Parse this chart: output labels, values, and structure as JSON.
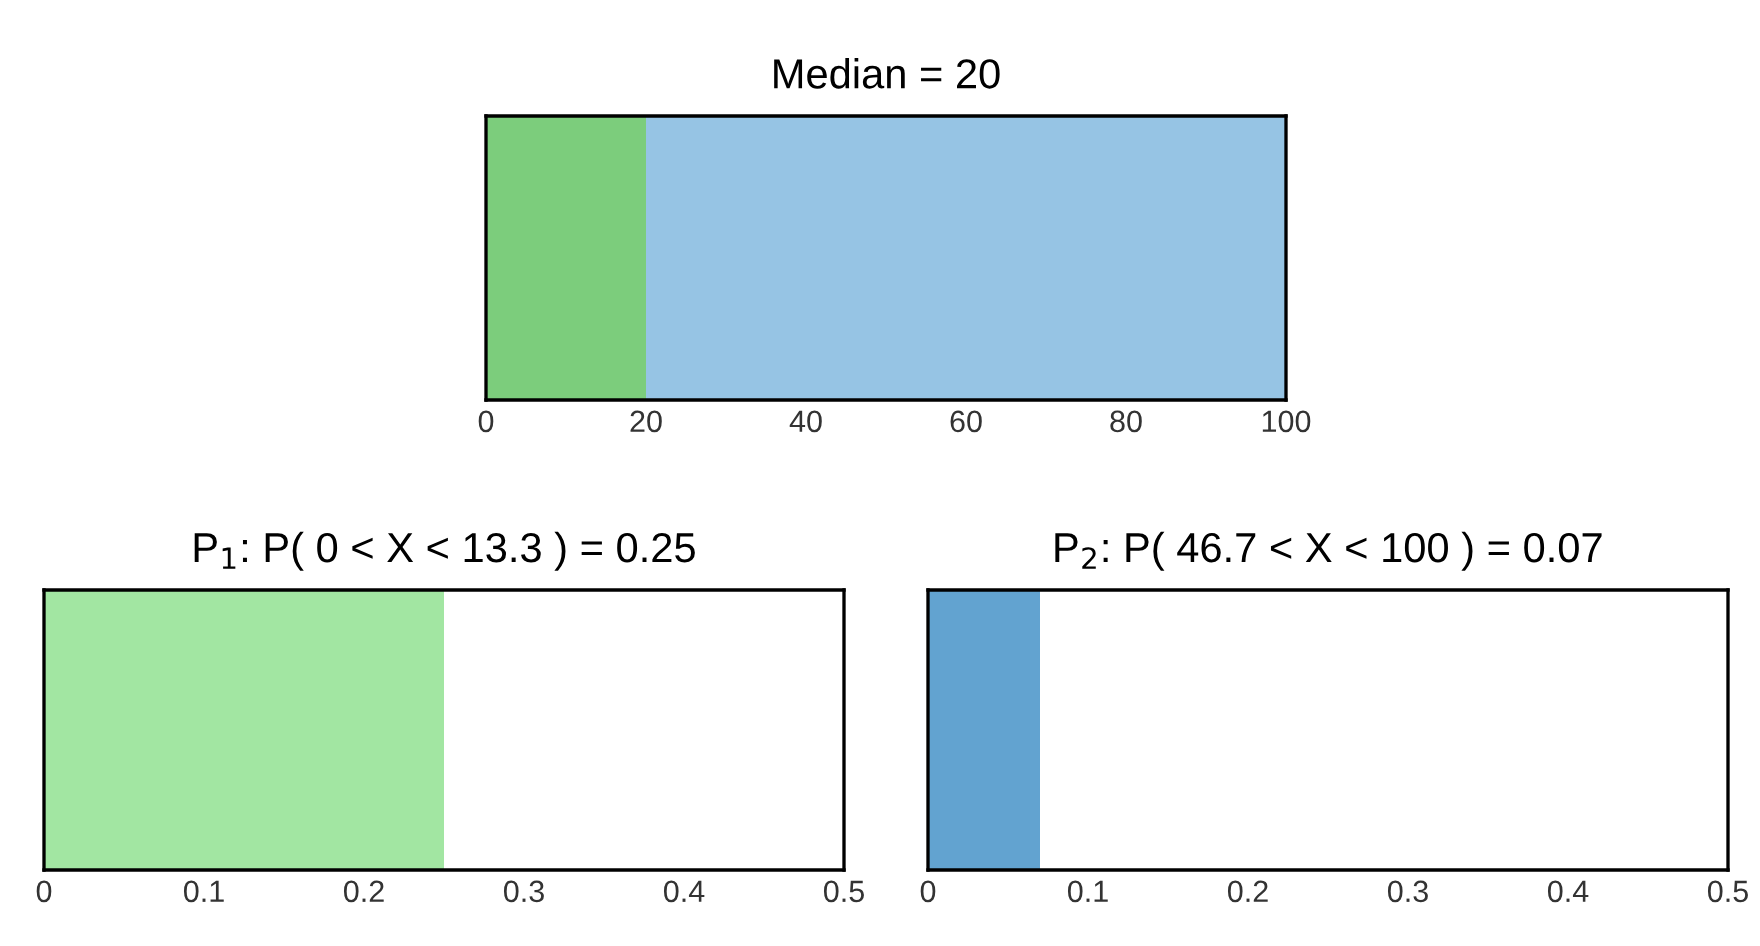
{
  "chart_data": [
    {
      "type": "bar",
      "orientation": "horizontal",
      "stacked": true,
      "title": "Median = 20",
      "categories": [
        null
      ],
      "tick_labels": "x",
      "xlim": [
        0,
        100
      ],
      "xticks": [
        0,
        20,
        40,
        60,
        80,
        100
      ],
      "grid": false,
      "legend": false,
      "series": [
        {
          "color": "#7ccd7c",
          "values": [
            20
          ]
        },
        {
          "color": "#96c4e4",
          "values": [
            80
          ]
        }
      ]
    },
    {
      "type": "bar",
      "orientation": "horizontal",
      "title": "P$_{1}$: P( 0 < X < 13.3 ) = 0.25",
      "categories": [
        null
      ],
      "tick_labels": "x",
      "xlim": [
        0,
        0.5
      ],
      "xticks": [
        0,
        0.1,
        0.2,
        0.3,
        0.4,
        0.5
      ],
      "grid": false,
      "legend": false,
      "series": [
        {
          "color": "#a2e6a2",
          "values": [
            0.25
          ]
        }
      ]
    },
    {
      "type": "bar",
      "orientation": "horizontal",
      "title": "P$_{2}$: P( 46.7 < X < 100 ) = 0.07",
      "categories": [
        null
      ],
      "tick_labels": "x",
      "xlim": [
        0,
        0.5
      ],
      "xticks": [
        0,
        0.1,
        0.2,
        0.3,
        0.4,
        0.5
      ],
      "grid": false,
      "legend": false,
      "series": [
        {
          "color": "#62a3d0",
          "values": [
            0.07
          ]
        }
      ]
    }
  ]
}
